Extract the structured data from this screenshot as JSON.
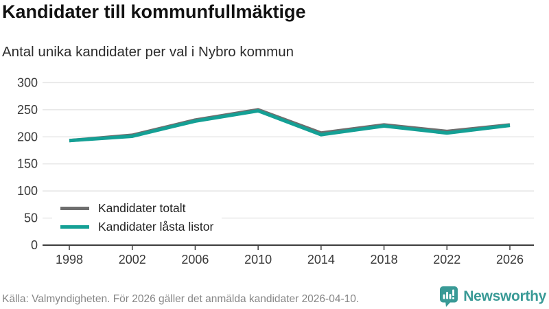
{
  "header": {
    "title": "Kandidater till kommunfullmäktige",
    "subtitle": "Antal unika kandidater per val i Nybro kommun"
  },
  "chart_data": {
    "type": "line",
    "title": "Kandidater till kommunfullmäktige",
    "subtitle": "Antal unika kandidater per val i Nybro kommun",
    "categories": [
      "1998",
      "2002",
      "2006",
      "2010",
      "2014",
      "2018",
      "2022",
      "2026"
    ],
    "series": [
      {
        "name": "Kandidater totalt",
        "color": "#6E6E6E",
        "values": [
          193,
          203,
          231,
          250,
          207,
          222,
          210,
          222
        ]
      },
      {
        "name": "Kandidater låsta listor",
        "color": "#14A095",
        "values": [
          193,
          201,
          229,
          248,
          204,
          220,
          207,
          221
        ]
      }
    ],
    "xlabel": "",
    "ylabel": "",
    "ylim": [
      0,
      300
    ],
    "yticks": [
      0,
      50,
      100,
      150,
      200,
      250,
      300
    ],
    "grid": true,
    "legend_position": "inside-bottom-left"
  },
  "footer": {
    "source": "Källa: Valmyndigheten. För 2026 gäller det anmälda kandidater 2026-04-10.",
    "brand": "Newsworthy"
  },
  "icons": {
    "brand_logo": "newsworthy-speech-bubble-bar-chart-icon"
  },
  "colors": {
    "accent_teal": "#14A095",
    "line_gray": "#6E6E6E",
    "grid": "#E4E4E4",
    "axis": "#3C3C3C",
    "brand_teal": "#399A96"
  }
}
